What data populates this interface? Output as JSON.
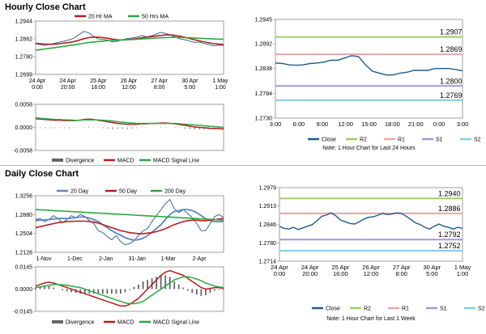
{
  "sections": {
    "hourly_title": "Hourly Close Chart",
    "daily_title": "Daily Close Chart"
  },
  "colors": {
    "close": "#1f5a8a",
    "ma_short": "#b81c1c",
    "ma_long": "#2aa842",
    "divergence": "#666666",
    "macd": "#b81c1c",
    "signal": "#2aa842",
    "r2": "#9ccc6a",
    "r1": "#e8a6a6",
    "s1": "#a896d6",
    "s2": "#7fcfe0",
    "ma_blue": "#5a86c0"
  },
  "chart_data": [
    {
      "id": "hourly_price",
      "type": "line",
      "legend": [
        "20 Hr MA",
        "50 Hrs MA"
      ],
      "yticks": [
        "1.2944",
        "1.2862",
        "1.2780",
        "1.2699"
      ],
      "ylim": [
        1.2699,
        1.2944
      ],
      "xticks": [
        "24 Apr\n0:00",
        "24 Apr\n20:00",
        "25 Apr\n16:00",
        "26 Apr\n12:00",
        "27 Apr\n8:00",
        "30 Apr\n5:00",
        "1 May\n1:00"
      ],
      "series": [
        {
          "name": "Close",
          "values": [
            1.284,
            1.2835,
            1.2832,
            1.2838,
            1.2842,
            1.2848,
            1.2852,
            1.2858,
            1.2866,
            1.2882,
            1.2896,
            1.289,
            1.2874,
            1.2862,
            1.286,
            1.2856,
            1.2848,
            1.2852,
            1.2858,
            1.2864,
            1.2866,
            1.287,
            1.2878,
            1.2872,
            1.2876,
            1.2884,
            1.2892,
            1.2886,
            1.288,
            1.287,
            1.2862,
            1.2858,
            1.2852,
            1.2846,
            1.2848,
            1.284,
            1.2836,
            1.283,
            1.2834,
            1.2832
          ]
        },
        {
          "name": "20 Hr MA",
          "values": [
            1.2842,
            1.284,
            1.2838,
            1.2837,
            1.2838,
            1.284,
            1.2843,
            1.2846,
            1.285,
            1.2856,
            1.2863,
            1.2868,
            1.287,
            1.287,
            1.2868,
            1.2865,
            1.2861,
            1.2858,
            1.2857,
            1.2858,
            1.286,
            1.2863,
            1.2867,
            1.287,
            1.2872,
            1.2875,
            1.2878,
            1.288,
            1.288,
            1.2878,
            1.2874,
            1.2869,
            1.2864,
            1.2858,
            1.2853,
            1.2848,
            1.2844,
            1.284,
            1.2838,
            1.2836
          ]
        },
        {
          "name": "50 Hrs MA",
          "values": [
            1.281,
            1.2813,
            1.2816,
            1.2819,
            1.2822,
            1.2825,
            1.2828,
            1.2832,
            1.2835,
            1.2838,
            1.2842,
            1.2845,
            1.2848,
            1.285,
            1.2852,
            1.2854,
            1.2855,
            1.2856,
            1.2857,
            1.2858,
            1.2859,
            1.286,
            1.2862,
            1.2863,
            1.2864,
            1.2866,
            1.2867,
            1.2868,
            1.2869,
            1.2869,
            1.2869,
            1.2868,
            1.2867,
            1.2866,
            1.2865,
            1.2864,
            1.2863,
            1.2862,
            1.2861,
            1.286
          ]
        }
      ]
    },
    {
      "id": "hourly_macd",
      "type": "line",
      "legend": [
        "Divergence",
        "MACD",
        "MACD Signal Line"
      ],
      "yticks": [
        "0.0058",
        "0.0000",
        "-0.0058"
      ],
      "ylim": [
        -0.0058,
        0.0058
      ],
      "series": [
        {
          "name": "MACD",
          "values": [
            0.0022,
            0.0021,
            0.002,
            0.0019,
            0.0018,
            0.0018,
            0.0017,
            0.0017,
            0.0017,
            0.0018,
            0.002,
            0.0021,
            0.002,
            0.0018,
            0.0016,
            0.0014,
            0.0012,
            0.001,
            0.0009,
            0.0008,
            0.0008,
            0.0008,
            0.0009,
            0.0009,
            0.001,
            0.001,
            0.0011,
            0.0011,
            0.001,
            0.0009,
            0.0007,
            0.0005,
            0.0003,
            0.0001,
            0.0,
            -0.0001,
            -0.0002,
            -0.0003,
            -0.0003,
            -0.0004
          ]
        },
        {
          "name": "MACD Signal Line",
          "values": [
            0.0024,
            0.0023,
            0.0022,
            0.0021,
            0.002,
            0.002,
            0.0019,
            0.0019,
            0.0018,
            0.0018,
            0.0019,
            0.0019,
            0.0019,
            0.0019,
            0.0018,
            0.0017,
            0.0016,
            0.0014,
            0.0013,
            0.0012,
            0.0011,
            0.001,
            0.001,
            0.001,
            0.001,
            0.001,
            0.001,
            0.001,
            0.001,
            0.001,
            0.0009,
            0.0008,
            0.0007,
            0.0006,
            0.0005,
            0.0004,
            0.0003,
            0.0002,
            0.0001,
            0.0
          ]
        }
      ]
    },
    {
      "id": "hourly_24h",
      "type": "line",
      "yticks": [
        "1.2945",
        "1.2892",
        "1.2838",
        "1.2784",
        "1.2730"
      ],
      "ylim": [
        1.273,
        1.2945
      ],
      "xticks": [
        "3:00",
        "6:00",
        "9:00",
        "12:00",
        "15:00",
        "18:00",
        "21:00",
        "0:00",
        "3:00"
      ],
      "levels": [
        {
          "name": "R2",
          "value": 1.2907,
          "label": "1.2907"
        },
        {
          "name": "R1",
          "value": 1.2869,
          "label": "1.2869"
        },
        {
          "name": "S1",
          "value": 1.28,
          "label": "1.2800"
        },
        {
          "name": "S2",
          "value": 1.2769,
          "label": "1.2769"
        }
      ],
      "series": [
        {
          "name": "Close",
          "values": [
            1.285,
            1.2849,
            1.2846,
            1.2845,
            1.2846,
            1.2849,
            1.285,
            1.2852,
            1.2856,
            1.2856,
            1.2861,
            1.2866,
            1.2864,
            1.2846,
            1.2832,
            1.2828,
            1.2824,
            1.2824,
            1.2828,
            1.283,
            1.2834,
            1.2834,
            1.2834,
            1.2838,
            1.2838,
            1.2838,
            1.2836,
            1.2833
          ]
        }
      ],
      "legend": [
        "Close",
        "R2",
        "R1",
        "S1",
        "S2"
      ],
      "note": "Note: 1 Hour Chart for Last 24 Hours"
    },
    {
      "id": "daily_price",
      "type": "line",
      "legend": [
        "20 Day",
        "50 Day",
        "200 Day"
      ],
      "yticks": [
        "1.3256",
        "1.2880",
        "1.2504",
        "1.2128"
      ],
      "ylim": [
        1.2128,
        1.3256
      ],
      "xticks": [
        "1-Nov",
        "1-Dec",
        "2-Jan",
        "31-Jan",
        "1-Mar",
        "2-Apr"
      ],
      "series": [
        {
          "name": "Close",
          "values": [
            1.278,
            1.28,
            1.274,
            1.278,
            1.286,
            1.28,
            1.272,
            1.278,
            1.286,
            1.282,
            1.288,
            1.284,
            1.276,
            1.27,
            1.256,
            1.252,
            1.244,
            1.238,
            1.246,
            1.234,
            1.228,
            1.23,
            1.236,
            1.246,
            1.256,
            1.26,
            1.274,
            1.286,
            1.298,
            1.31,
            1.318,
            1.3,
            1.292,
            1.298,
            1.29,
            1.282,
            1.27,
            1.256,
            1.256,
            1.27,
            1.284,
            1.288,
            1.282
          ]
        },
        {
          "name": "20 Day",
          "values": [
            1.276,
            1.277,
            1.2775,
            1.278,
            1.279,
            1.28,
            1.2805,
            1.28,
            1.281,
            1.282,
            1.283,
            1.283,
            1.281,
            1.278,
            1.274,
            1.268,
            1.262,
            1.256,
            1.251,
            1.247,
            1.242,
            1.239,
            1.237,
            1.238,
            1.241,
            1.246,
            1.253,
            1.26,
            1.268,
            1.278,
            1.288,
            1.294,
            1.296,
            1.298,
            1.298,
            1.296,
            1.292,
            1.286,
            1.28,
            1.276,
            1.274,
            1.274,
            1.274
          ]
        },
        {
          "name": "50 Day",
          "values": [
            1.262,
            1.264,
            1.266,
            1.268,
            1.27,
            1.272,
            1.273,
            1.274,
            1.2745,
            1.2748,
            1.275,
            1.2748,
            1.274,
            1.273,
            1.271,
            1.268,
            1.265,
            1.262,
            1.259,
            1.256,
            1.254,
            1.252,
            1.251,
            1.25,
            1.25,
            1.251,
            1.252,
            1.254,
            1.257,
            1.26,
            1.264,
            1.268,
            1.271,
            1.274,
            1.276,
            1.277,
            1.277,
            1.276,
            1.276,
            1.277,
            1.278,
            1.279,
            1.28
          ]
        },
        {
          "name": "200 Day",
          "values": [
            1.298,
            1.2975,
            1.297,
            1.2965,
            1.296,
            1.2955,
            1.295,
            1.2945,
            1.294,
            1.2935,
            1.293,
            1.2925,
            1.292,
            1.2915,
            1.291,
            1.2905,
            1.29,
            1.2895,
            1.289,
            1.2885,
            1.288,
            1.2875,
            1.287,
            1.2865,
            1.286,
            1.2855,
            1.285,
            1.2845,
            1.284,
            1.2835,
            1.283,
            1.2825,
            1.282,
            1.2815,
            1.281,
            1.2805,
            1.28,
            1.2795,
            1.279,
            1.2785,
            1.278,
            1.2775,
            1.277
          ]
        }
      ]
    },
    {
      "id": "daily_macd",
      "type": "line",
      "legend": [
        "Divergence",
        "MACD",
        "MACD Signal Line"
      ],
      "yticks": [
        "0.0145",
        "0.0000",
        "-0.0145"
      ],
      "ylim": [
        -0.0145,
        0.0145
      ],
      "series": [
        {
          "name": "MACD",
          "values": [
            0.002,
            0.003,
            0.004,
            0.0045,
            0.004,
            0.003,
            0.002,
            0.001,
            0.0,
            -0.001,
            -0.002,
            -0.003,
            -0.004,
            -0.005,
            -0.006,
            -0.007,
            -0.008,
            -0.009,
            -0.01,
            -0.011,
            -0.011,
            -0.01,
            -0.008,
            -0.006,
            -0.003,
            0.0,
            0.003,
            0.006,
            0.009,
            0.011,
            0.012,
            0.011,
            0.01,
            0.009,
            0.007,
            0.005,
            0.003,
            0.001,
            0.0,
            0.0005,
            0.001,
            0.001,
            0.0005
          ]
        },
        {
          "name": "MACD Signal Line",
          "values": [
            0.001,
            0.0015,
            0.002,
            0.0025,
            0.003,
            0.003,
            0.0028,
            0.0025,
            0.002,
            0.0015,
            0.001,
            0.0,
            -0.001,
            -0.002,
            -0.003,
            -0.004,
            -0.005,
            -0.006,
            -0.007,
            -0.008,
            -0.009,
            -0.0095,
            -0.0095,
            -0.009,
            -0.008,
            -0.006,
            -0.004,
            -0.002,
            0.0,
            0.002,
            0.004,
            0.006,
            0.007,
            0.008,
            0.008,
            0.0075,
            0.0065,
            0.0055,
            0.004,
            0.003,
            0.002,
            0.0015,
            0.001
          ]
        }
      ]
    },
    {
      "id": "daily_week",
      "type": "line",
      "yticks": [
        "1.2979",
        "1.2913",
        "1.2846",
        "1.2780",
        "1.2714"
      ],
      "ylim": [
        1.2714,
        1.2979
      ],
      "xticks": [
        "24 Apr\n0:00",
        "24 Apr\n20:00",
        "25 Apr\n16:00",
        "26 Apr\n12:00",
        "27 Apr\n8:00",
        "30 Apr\n5:00",
        "1 May\n1:00"
      ],
      "levels": [
        {
          "name": "R2",
          "value": 1.294,
          "label": "1.2940"
        },
        {
          "name": "R1",
          "value": 1.2886,
          "label": "1.2886"
        },
        {
          "name": "S1",
          "value": 1.2792,
          "label": "1.2792"
        },
        {
          "name": "S2",
          "value": 1.2752,
          "label": "1.2752"
        }
      ],
      "series": [
        {
          "name": "Close",
          "values": [
            1.284,
            1.2832,
            1.283,
            1.2836,
            1.2828,
            1.2834,
            1.284,
            1.2846,
            1.286,
            1.2876,
            1.288,
            1.2888,
            1.2878,
            1.2862,
            1.2856,
            1.285,
            1.2848,
            1.2856,
            1.2866,
            1.2872,
            1.2874,
            1.288,
            1.2886,
            1.2882,
            1.2884,
            1.2888,
            1.2886,
            1.2876,
            1.2864,
            1.2852,
            1.2846,
            1.2836,
            1.283,
            1.284,
            1.2848,
            1.284,
            1.2836,
            1.283,
            1.2836,
            1.2832
          ]
        }
      ],
      "legend": [
        "Close",
        "R2",
        "R1",
        "S1",
        "S2"
      ],
      "note": "Note: 1 Hour Chart for Last 1 Week"
    }
  ]
}
